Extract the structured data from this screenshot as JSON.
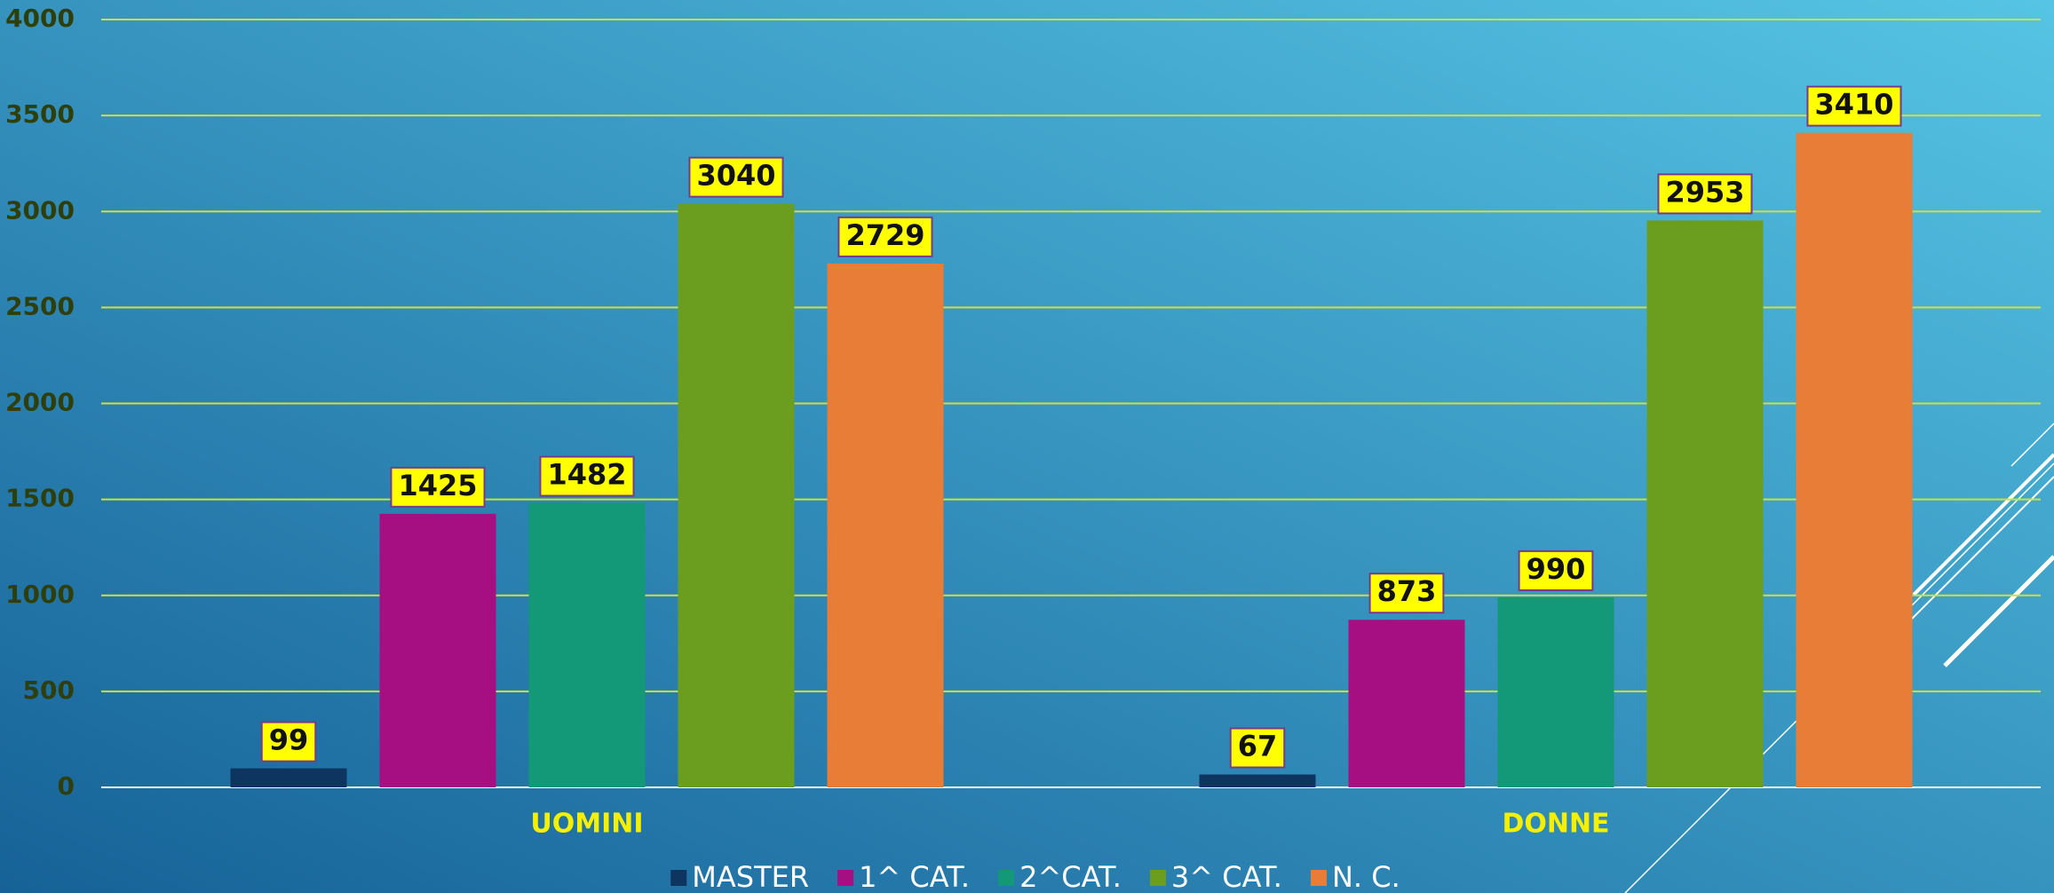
{
  "chart_data": {
    "type": "bar",
    "categories": [
      "UOMINI",
      "DONNE"
    ],
    "series": [
      {
        "name": "MASTER",
        "color": "#0e3560",
        "values": [
          99,
          67
        ]
      },
      {
        "name": "1^ CAT.",
        "color": "#a50f82",
        "values": [
          1425,
          873
        ]
      },
      {
        "name": "2^CAT.",
        "color": "#139878",
        "values": [
          1482,
          990
        ]
      },
      {
        "name": "3^ CAT.",
        "color": "#6b9e1f",
        "values": [
          3040,
          2953
        ]
      },
      {
        "name": "N. C.",
        "color": "#e87d37",
        "values": [
          2729,
          3410
        ]
      }
    ],
    "ylim": [
      0,
      4000
    ],
    "yticks": [
      0,
      500,
      1000,
      1500,
      2000,
      2500,
      3000,
      3500,
      4000
    ],
    "grid": true,
    "legend": "bottom"
  }
}
